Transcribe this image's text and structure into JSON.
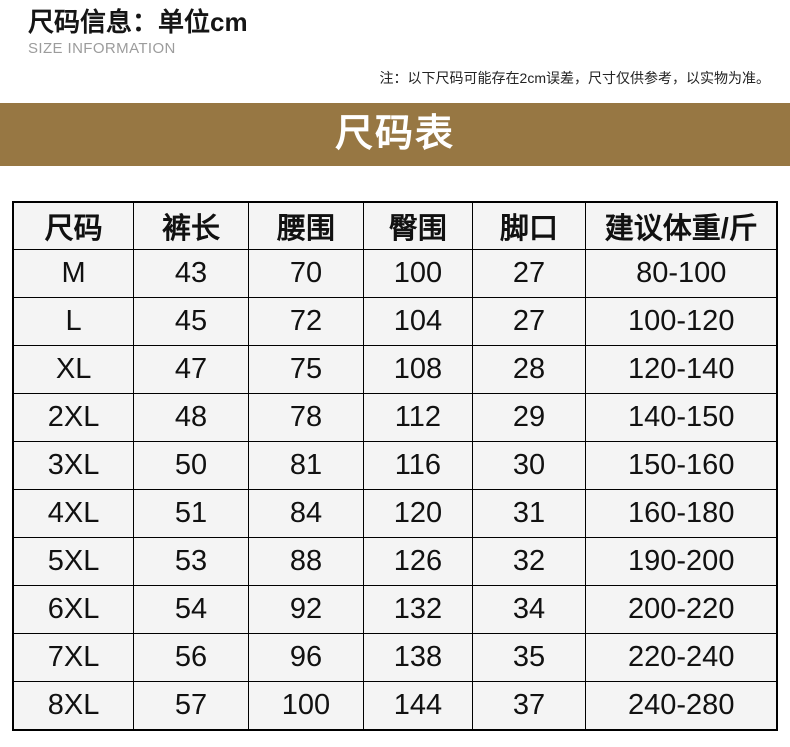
{
  "header": {
    "title": "尺码信息：单位cm",
    "subtitle": "SIZE INFORMATION",
    "note": "注：以下尺码可能存在2cm误差，尺寸仅供参考，以实物为准。"
  },
  "banner": {
    "label": "尺码表"
  },
  "colors": {
    "banner_bg": "#977743",
    "banner_text": "#ffffff",
    "cell_bg": "#f4f4f4",
    "border": "#000000"
  },
  "size_table": {
    "column_widths_percent": [
      15.8,
      15.0,
      15.1,
      14.2,
      14.9,
      25.0
    ],
    "headers": [
      "尺码",
      "裤长",
      "腰围",
      "臀围",
      "脚口",
      "建议体重/斤"
    ],
    "rows": [
      [
        "M",
        "43",
        "70",
        "100",
        "27",
        "80-100"
      ],
      [
        "L",
        "45",
        "72",
        "104",
        "27",
        "100-120"
      ],
      [
        "XL",
        "47",
        "75",
        "108",
        "28",
        "120-140"
      ],
      [
        "2XL",
        "48",
        "78",
        "112",
        "29",
        "140-150"
      ],
      [
        "3XL",
        "50",
        "81",
        "116",
        "30",
        "150-160"
      ],
      [
        "4XL",
        "51",
        "84",
        "120",
        "31",
        "160-180"
      ],
      [
        "5XL",
        "53",
        "88",
        "126",
        "32",
        "190-200"
      ],
      [
        "6XL",
        "54",
        "92",
        "132",
        "34",
        "200-220"
      ],
      [
        "7XL",
        "56",
        "96",
        "138",
        "35",
        "220-240"
      ],
      [
        "8XL",
        "57",
        "100",
        "144",
        "37",
        "240-280"
      ]
    ]
  }
}
